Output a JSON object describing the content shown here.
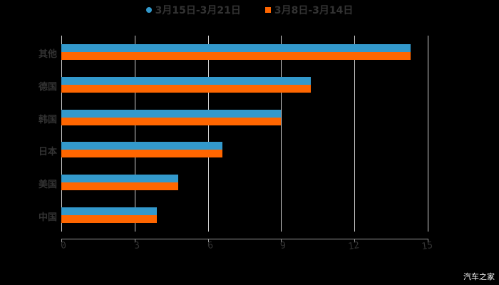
{
  "chart_data": {
    "type": "bar",
    "orientation": "horizontal",
    "title": "",
    "xlabel": "",
    "ylabel": "",
    "categories": [
      "其他",
      "德国",
      "韩国",
      "日本",
      "美国",
      "中国"
    ],
    "series": [
      {
        "name": "3月15日-3月21日",
        "color": "#3399cc",
        "values": [
          14.3,
          10.2,
          9.0,
          6.6,
          4.8,
          3.9
        ]
      },
      {
        "name": "3月8日-3月14日",
        "color": "#ff6600",
        "values": [
          14.3,
          10.2,
          9.0,
          6.6,
          4.8,
          3.9
        ]
      }
    ],
    "xlim": [
      0,
      15
    ],
    "xticks": [
      "0",
      "3",
      "6",
      "9",
      "12",
      "15"
    ],
    "grid": true,
    "legend_position": "top"
  },
  "legend": {
    "items": [
      {
        "label": "3月15日-3月21日",
        "color": "#3399cc",
        "shape": "circle"
      },
      {
        "label": "3月8日-3月14日",
        "color": "#ff6600",
        "shape": "square"
      }
    ]
  },
  "watermark": "汽车之家"
}
